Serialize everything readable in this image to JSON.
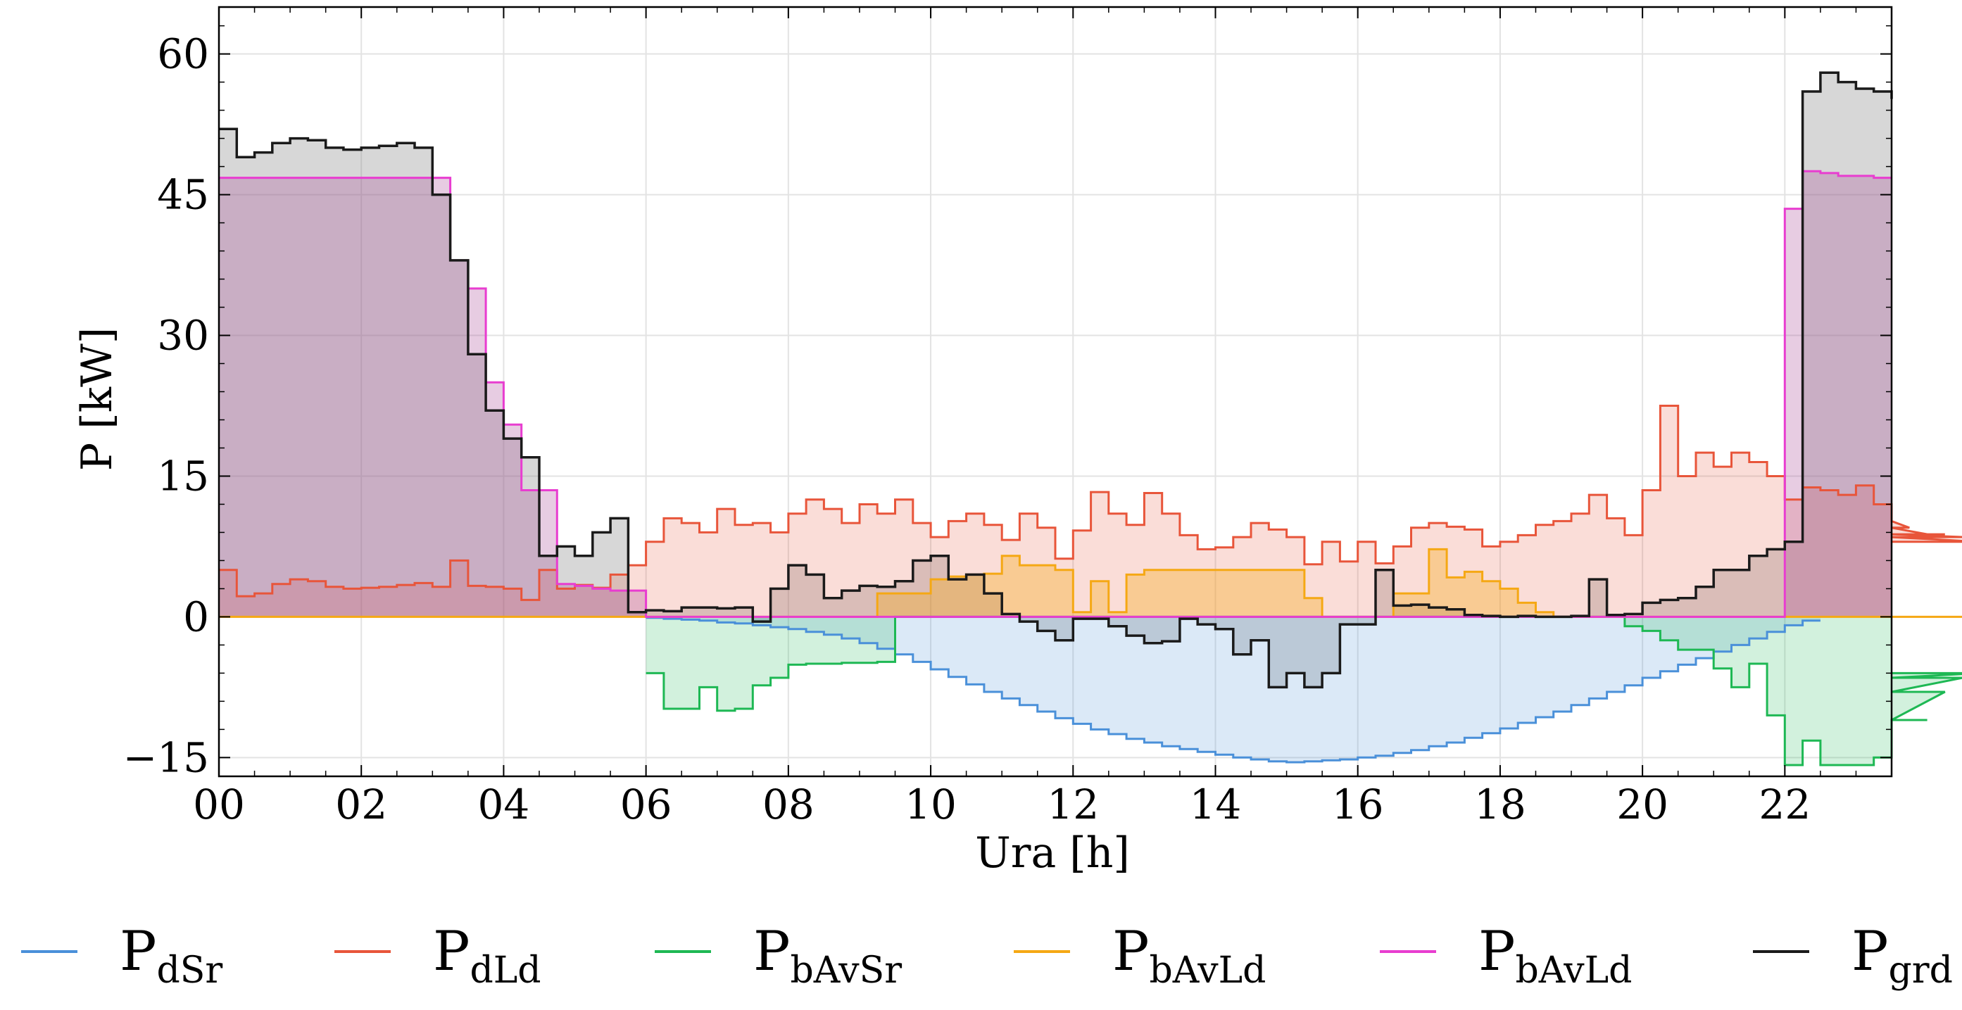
{
  "chart_data": {
    "type": "area",
    "title": "",
    "xlabel": "Ura [h]",
    "ylabel": "P [kW]",
    "xlim": [
      0,
      23.5
    ],
    "ylim": [
      -17,
      65
    ],
    "x_ticks": [
      0,
      2,
      4,
      6,
      8,
      10,
      12,
      14,
      16,
      18,
      20,
      22
    ],
    "x_tick_labels": [
      "00",
      "02",
      "04",
      "06",
      "08",
      "10",
      "12",
      "14",
      "16",
      "18",
      "20",
      "22"
    ],
    "y_ticks": [
      -15,
      0,
      15,
      30,
      45,
      60
    ],
    "y_tick_labels": [
      "−15",
      "0",
      "15",
      "30",
      "45",
      "60"
    ],
    "grid": true,
    "step_hours": 0.25,
    "legend_position": "bottom",
    "series": [
      {
        "key": "dSr",
        "base": "P",
        "sub": "dSr",
        "color": "#4a90d9",
        "fill": "rgba(74,144,217,0.20)",
        "start": 6.0,
        "values": [
          -0.1,
          -0.2,
          -0.3,
          -0.4,
          -0.6,
          -0.7,
          -0.9,
          -1.1,
          -1.3,
          -1.6,
          -1.9,
          -2.3,
          -2.8,
          -3.4,
          -4.0,
          -4.8,
          -5.6,
          -6.4,
          -7.2,
          -8.0,
          -8.7,
          -9.4,
          -10.1,
          -10.8,
          -11.4,
          -12.0,
          -12.5,
          -13.0,
          -13.4,
          -13.8,
          -14.1,
          -14.4,
          -14.7,
          -15.0,
          -15.2,
          -15.4,
          -15.5,
          -15.4,
          -15.3,
          -15.2,
          -15.0,
          -14.8,
          -14.5,
          -14.2,
          -13.8,
          -13.4,
          -12.9,
          -12.4,
          -11.9,
          -11.3,
          -10.7,
          -10.1,
          -9.4,
          -8.7,
          -8.0,
          -7.3,
          -6.5,
          -5.8,
          -5.1,
          -4.4,
          -3.7,
          -3.0,
          -2.3,
          -1.6,
          -0.9,
          -0.4
        ]
      },
      {
        "key": "dLd",
        "base": "P",
        "sub": "dLd",
        "color": "#e8553a",
        "fill": "rgba(232,85,58,0.20)",
        "start": 0.0,
        "values": [
          5.0,
          2.2,
          2.5,
          3.5,
          4.0,
          3.8,
          3.2,
          3.0,
          3.1,
          3.2,
          3.4,
          3.6,
          3.2,
          6.0,
          3.3,
          3.2,
          3.0,
          1.8,
          5.0,
          3.0,
          3.4,
          3.1,
          4.5,
          5.5,
          8.0,
          10.5,
          10.0,
          9.0,
          11.5,
          9.8,
          10.0,
          9.0,
          11.0,
          12.5,
          11.5,
          10.0,
          12.0,
          11.0,
          12.5,
          10.0,
          8.5,
          10.2,
          11.0,
          9.8,
          8.2,
          11.0,
          9.5,
          6.2,
          9.2,
          13.3,
          11.0,
          9.8,
          13.2,
          11.0,
          8.7,
          7.2,
          7.4,
          8.5,
          10.0,
          9.3,
          8.5,
          5.6,
          8.0,
          5.9,
          8.0,
          5.7,
          7.5,
          9.5,
          10.0,
          9.6,
          9.3,
          7.5,
          8.0,
          8.7,
          9.8,
          10.2,
          11.0,
          13.0,
          10.5,
          8.7,
          13.5,
          22.5,
          15.0,
          17.5,
          16.0,
          17.5,
          16.5,
          15.0,
          12.5,
          13.8,
          13.5,
          13.0,
          14.0,
          12.0,
          10.2,
          9.5,
          8.8,
          8.8,
          8.5,
          8.0
        ]
      },
      {
        "key": "bAvSr",
        "base": "P",
        "sub": "bAvSr",
        "color": "#1eb854",
        "fill": "rgba(30,184,84,0.20)",
        "start": 6.0,
        "values": [
          -6.0,
          -9.8,
          -9.8,
          -7.5,
          -10.0,
          -9.8,
          -7.3,
          -6.5,
          -5.1,
          -5.0,
          -5.0,
          -4.9,
          -4.9,
          -4.8,
          0,
          0,
          0,
          0,
          0,
          0,
          0,
          0,
          0,
          0,
          0,
          0,
          0,
          0,
          0,
          0,
          0,
          0,
          0,
          0,
          0,
          0,
          0,
          0,
          0,
          0,
          0,
          0,
          0,
          0,
          0,
          0,
          0,
          0,
          0,
          0,
          0,
          0,
          0,
          0,
          0,
          -1.0,
          -1.5,
          -2.5,
          -3.5,
          -3.5,
          -5.5,
          -7.5,
          -5.0,
          -10.5,
          -15.8,
          -13.2,
          -15.8,
          -15.8,
          -15.8,
          -15.0,
          -11.0,
          -11.0,
          -11.0,
          -8.0,
          -6.5,
          -6.0,
          -6.0,
          -6.0
        ]
      },
      {
        "key": "bAvLd_orange",
        "base": "P",
        "sub": "bAvLd",
        "color": "#f5a814",
        "fill": "rgba(245,168,20,0.35)",
        "start": 0.0,
        "values": [
          0,
          0,
          0,
          0,
          0,
          0,
          0,
          0,
          0,
          0,
          0,
          0,
          0,
          0,
          0,
          0,
          0,
          0,
          0,
          0,
          0,
          0,
          0,
          0,
          0,
          0,
          0,
          0,
          0,
          0,
          0,
          0,
          0,
          0,
          0,
          0,
          0,
          2.5,
          2.5,
          2.5,
          4.0,
          4.3,
          4.5,
          4.6,
          6.5,
          5.5,
          5.5,
          5.0,
          0.5,
          3.8,
          0.5,
          4.5,
          5.0,
          5.0,
          5.0,
          5.0,
          5.0,
          5.0,
          5.0,
          5.0,
          5.0,
          2.0,
          0,
          0,
          0,
          0,
          2.5,
          2.5,
          7.2,
          4.2,
          4.8,
          3.8,
          3.0,
          1.5,
          0.5,
          0,
          0,
          0,
          0,
          0,
          0,
          0,
          0,
          0,
          0,
          0,
          0,
          0,
          0,
          0,
          0,
          0,
          0,
          0,
          0,
          0,
          0,
          0,
          0,
          0
        ]
      },
      {
        "key": "bAvLd_magenta",
        "base": "P",
        "sub": "bAvLd",
        "color": "#e83dd0",
        "fill": "rgba(160,50,140,0.25)",
        "start": 0.0,
        "values": [
          46.8,
          46.8,
          46.8,
          46.8,
          46.8,
          46.8,
          46.8,
          46.8,
          46.8,
          46.8,
          46.8,
          46.8,
          46.8,
          38.0,
          35.0,
          25.0,
          20.5,
          13.5,
          13.5,
          3.5,
          3.3,
          3.0,
          2.8,
          2.8,
          0,
          0,
          0,
          0,
          0,
          0,
          0,
          0,
          0,
          0,
          0,
          0,
          0,
          0,
          0,
          0,
          0,
          0,
          0,
          0,
          0,
          0,
          0,
          0,
          0,
          0,
          0,
          0,
          0,
          0,
          0,
          0,
          0,
          0,
          0,
          0,
          0,
          0,
          0,
          0,
          0,
          0,
          0,
          0,
          0,
          0,
          0,
          0,
          0,
          0,
          0,
          0,
          0,
          0,
          0,
          0,
          0,
          0,
          0,
          0,
          0,
          0,
          0,
          0,
          43.5,
          47.5,
          47.3,
          47.0,
          47.0,
          46.8
        ]
      },
      {
        "key": "grd",
        "base": "P",
        "sub": "grd",
        "color": "#1a1a1a",
        "fill": "rgba(130,130,130,0.32)",
        "start": 0.0,
        "values": [
          52.0,
          49.0,
          49.5,
          50.5,
          51.0,
          50.8,
          50.0,
          49.8,
          50.0,
          50.2,
          50.5,
          50.0,
          45.0,
          38.0,
          28.0,
          22.0,
          19.0,
          17.0,
          6.5,
          7.5,
          6.5,
          9.0,
          10.5,
          0.5,
          0.7,
          0.6,
          1.0,
          1.0,
          0.9,
          1.0,
          -0.5,
          3.0,
          5.5,
          4.5,
          2.0,
          2.8,
          3.3,
          3.2,
          3.8,
          6.0,
          6.5,
          4.0,
          4.5,
          2.5,
          0.3,
          -0.5,
          -1.5,
          -2.5,
          -0.2,
          -0.2,
          -1.0,
          -2.0,
          -2.8,
          -2.6,
          -0.2,
          -0.8,
          -1.3,
          -4.0,
          -2.5,
          -7.5,
          -6.0,
          -7.5,
          -6.0,
          -0.8,
          -0.8,
          5.0,
          1.2,
          1.3,
          1.0,
          0.8,
          0.2,
          0.1,
          0.0,
          0.1,
          0.0,
          0.0,
          0.1,
          4.0,
          0.2,
          0.3,
          1.5,
          1.8,
          2.0,
          3.2,
          5.0,
          5.0,
          6.5,
          7.2,
          8.0,
          56.0,
          58.0,
          57.0,
          56.3,
          56.0,
          55.2
        ]
      }
    ],
    "legend": [
      {
        "key": "dSr",
        "base": "P",
        "sub": "dSr"
      },
      {
        "key": "dLd",
        "base": "P",
        "sub": "dLd"
      },
      {
        "key": "bAvSr",
        "base": "P",
        "sub": "bAvSr"
      },
      {
        "key": "bAvLd_orange",
        "base": "P",
        "sub": "bAvLd"
      },
      {
        "key": "bAvLd_magenta",
        "base": "P",
        "sub": "bAvLd"
      },
      {
        "key": "grd",
        "base": "P",
        "sub": "grd"
      }
    ]
  }
}
